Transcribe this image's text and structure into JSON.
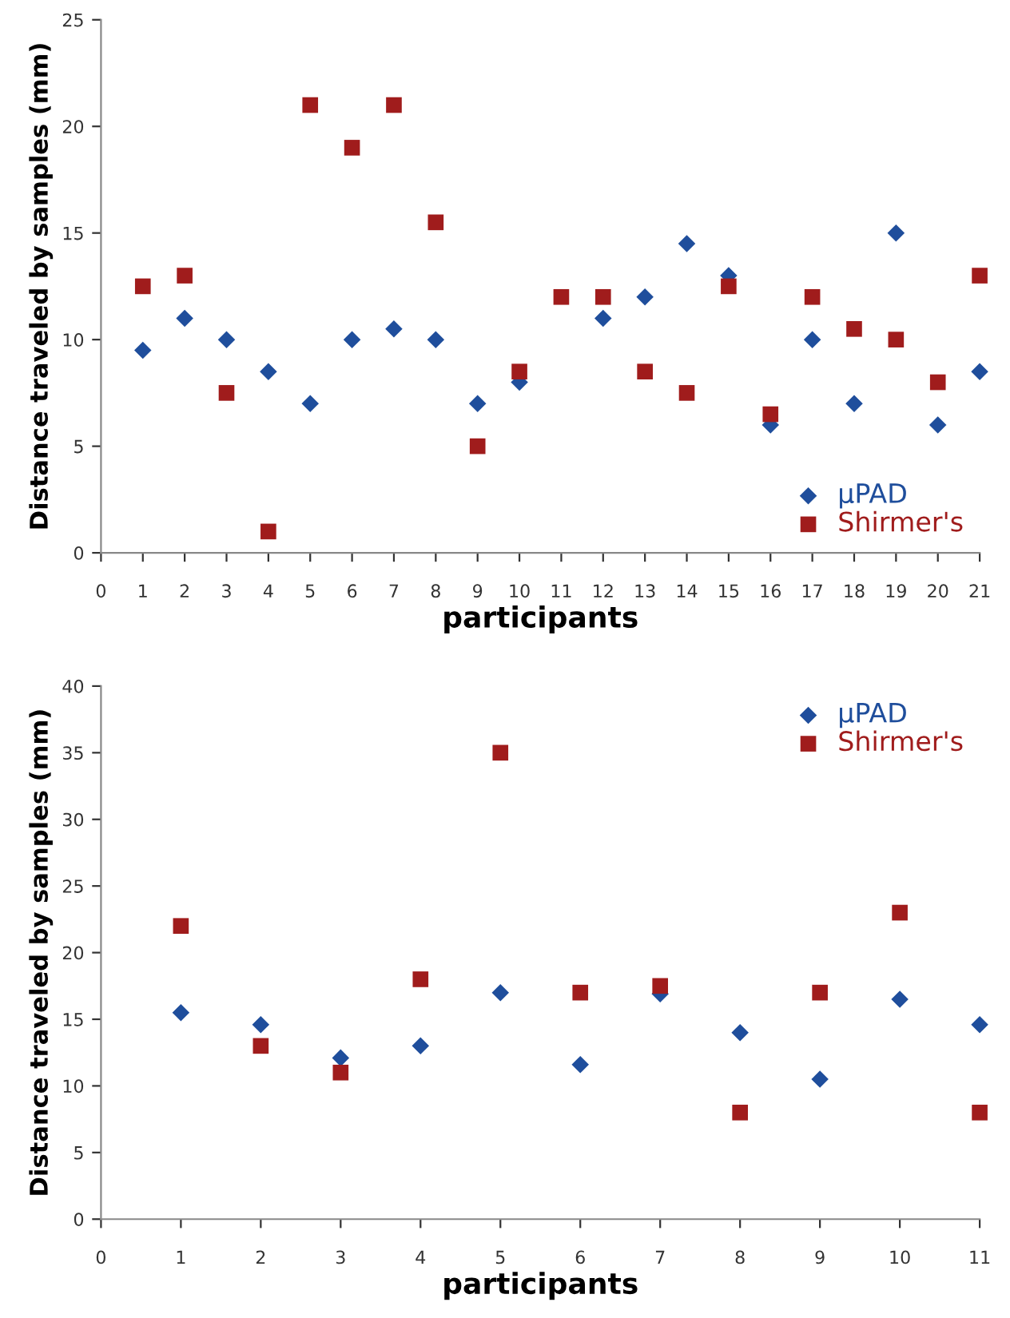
{
  "chart_data": [
    {
      "type": "scatter",
      "xlabel": "participants",
      "ylabel": "Distance traveled by samples (mm)",
      "x": [
        1,
        2,
        3,
        4,
        5,
        6,
        7,
        8,
        9,
        10,
        11,
        12,
        13,
        14,
        15,
        16,
        17,
        18,
        19,
        20,
        21
      ],
      "series": [
        {
          "name": "µPAD",
          "color": "#1f4e9c",
          "marker": "diamond",
          "values": [
            9.5,
            11,
            10,
            8.5,
            7,
            10,
            10.5,
            10,
            7,
            8,
            null,
            11,
            12,
            14.5,
            13,
            6,
            10,
            7,
            15,
            6,
            8.5
          ]
        },
        {
          "name": "Shirmer's",
          "color": "#a01c1c",
          "marker": "square",
          "values": [
            12.5,
            13,
            7.5,
            1,
            21,
            19,
            21,
            15.5,
            5,
            8.5,
            12,
            12,
            8.5,
            7.5,
            12.5,
            6.5,
            12,
            10.5,
            10,
            8,
            13
          ]
        }
      ],
      "xlim": [
        0,
        21
      ],
      "xticks": [
        0,
        1,
        2,
        3,
        4,
        5,
        6,
        7,
        8,
        9,
        10,
        11,
        12,
        13,
        14,
        15,
        16,
        17,
        18,
        19,
        20,
        21
      ],
      "ylim": [
        0,
        25
      ],
      "yticks": [
        0,
        5,
        10,
        15,
        20,
        25
      ],
      "grid": false,
      "legend": "bottom right"
    },
    {
      "type": "scatter",
      "xlabel": "participants",
      "ylabel": "Distance traveled by samples (mm)",
      "x": [
        1,
        2,
        3,
        4,
        5,
        6,
        7,
        8,
        9,
        10,
        11
      ],
      "series": [
        {
          "name": "µPAD",
          "color": "#1f4e9c",
          "marker": "diamond",
          "values": [
            15.5,
            14.6,
            12.1,
            13,
            17,
            11.6,
            16.9,
            14,
            10.5,
            16.5,
            14.6
          ]
        },
        {
          "name": "Shirmer's",
          "color": "#a01c1c",
          "marker": "square",
          "values": [
            22,
            13,
            11,
            18,
            35,
            17,
            17.5,
            8,
            17,
            23,
            8
          ]
        }
      ],
      "xlim": [
        0,
        11
      ],
      "xticks": [
        0,
        1,
        2,
        3,
        4,
        5,
        6,
        7,
        8,
        9,
        10,
        11
      ],
      "ylim": [
        0,
        40
      ],
      "yticks": [
        0,
        5,
        10,
        15,
        20,
        25,
        30,
        35,
        40
      ],
      "grid": false,
      "legend": "top right"
    }
  ]
}
